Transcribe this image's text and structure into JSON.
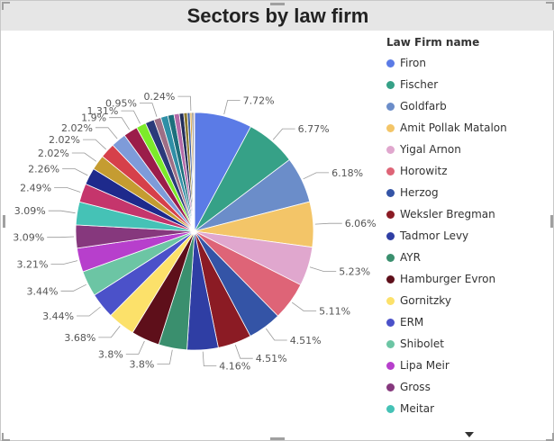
{
  "chart_data": {
    "type": "pie",
    "title": "Sectors by law firm",
    "legend_title": "Law Firm name",
    "legend_position": "right",
    "slices": [
      {
        "name": "Firon",
        "value": 7.72,
        "label": "7.72%",
        "color": "#5B7BE6"
      },
      {
        "name": "Fischer",
        "value": 6.77,
        "label": "6.77%",
        "color": "#36A187"
      },
      {
        "name": "Goldfarb",
        "value": 6.18,
        "label": "6.18%",
        "color": "#6B8DC9"
      },
      {
        "name": "Amit Pollak Matalon",
        "value": 6.06,
        "label": "6.06%",
        "color": "#F3C568"
      },
      {
        "name": "Yigal Arnon",
        "value": 5.23,
        "label": "5.23%",
        "color": "#E0A7CE"
      },
      {
        "name": "Horowitz",
        "value": 5.11,
        "label": "5.11%",
        "color": "#DE6477"
      },
      {
        "name": "Herzog",
        "value": 4.51,
        "label": "4.51%",
        "color": "#3454A6"
      },
      {
        "name": "Weksler Bregman",
        "value": 4.51,
        "label": "4.51%",
        "color": "#8B1B24"
      },
      {
        "name": "Tadmor Levy",
        "value": 4.16,
        "label": "4.16%",
        "color": "#2F3EA4"
      },
      {
        "name": "AYR",
        "value": 3.8,
        "label": "3.8%",
        "color": "#3A8F6E"
      },
      {
        "name": "Hamburger Evron",
        "value": 3.8,
        "label": "3.8%",
        "color": "#5E0F1A"
      },
      {
        "name": "Gornitzky",
        "value": 3.68,
        "label": "3.68%",
        "color": "#FCE16A"
      },
      {
        "name": "ERM",
        "value": 3.44,
        "label": "3.44%",
        "color": "#4B51C9"
      },
      {
        "name": "Shibolet",
        "value": 3.44,
        "label": "3.44%",
        "color": "#6CC5A4"
      },
      {
        "name": "Lipa Meir",
        "value": 3.21,
        "label": "3.21%",
        "color": "#B73FCC"
      },
      {
        "name": "Gross",
        "value": 3.09,
        "label": "3.09%",
        "color": "#86387D"
      },
      {
        "name": "Meitar",
        "value": 3.09,
        "label": "3.09%",
        "color": "#45C2B6"
      },
      {
        "name": "",
        "value": 2.49,
        "label": "2.49%",
        "color": "#C5356C"
      },
      {
        "name": "",
        "value": 2.26,
        "label": "2.26%",
        "color": "#1E2A8C"
      },
      {
        "name": "",
        "value": 2.02,
        "label": "2.02%",
        "color": "#C59C31"
      },
      {
        "name": "",
        "value": 2.02,
        "label": "2.02%",
        "color": "#D6404A"
      },
      {
        "name": "",
        "value": 2.02,
        "label": "2.02%",
        "color": "#7E9BD9"
      },
      {
        "name": "",
        "value": 1.9,
        "label": "1.9%",
        "color": "#9B1D4A"
      },
      {
        "name": "",
        "value": 1.31,
        "label": "1.31%",
        "color": "#7CEB2A"
      },
      {
        "name": "",
        "value": 1.2,
        "label": "",
        "color": "#2A3A7A"
      },
      {
        "name": "",
        "value": 0.95,
        "label": "0.95%",
        "color": "#9E6F86"
      },
      {
        "name": "",
        "value": 0.95,
        "label": "",
        "color": "#2F8FA6"
      },
      {
        "name": "",
        "value": 0.83,
        "label": "",
        "color": "#1D6F7C"
      },
      {
        "name": "",
        "value": 0.71,
        "label": "",
        "color": "#B46AA8"
      },
      {
        "name": "",
        "value": 0.59,
        "label": "",
        "color": "#222E5A"
      },
      {
        "name": "",
        "value": 0.48,
        "label": "",
        "color": "#8C7A2F"
      },
      {
        "name": "",
        "value": 0.36,
        "label": "",
        "color": "#3C5C9C"
      },
      {
        "name": "",
        "value": 0.24,
        "label": "0.24%",
        "color": "#D9A238"
      },
      {
        "name": "",
        "value": 0.24,
        "label": "",
        "color": "#6A6A6A"
      },
      {
        "name": "",
        "value": 0.12,
        "label": "",
        "color": "#E07C3A"
      }
    ]
  }
}
